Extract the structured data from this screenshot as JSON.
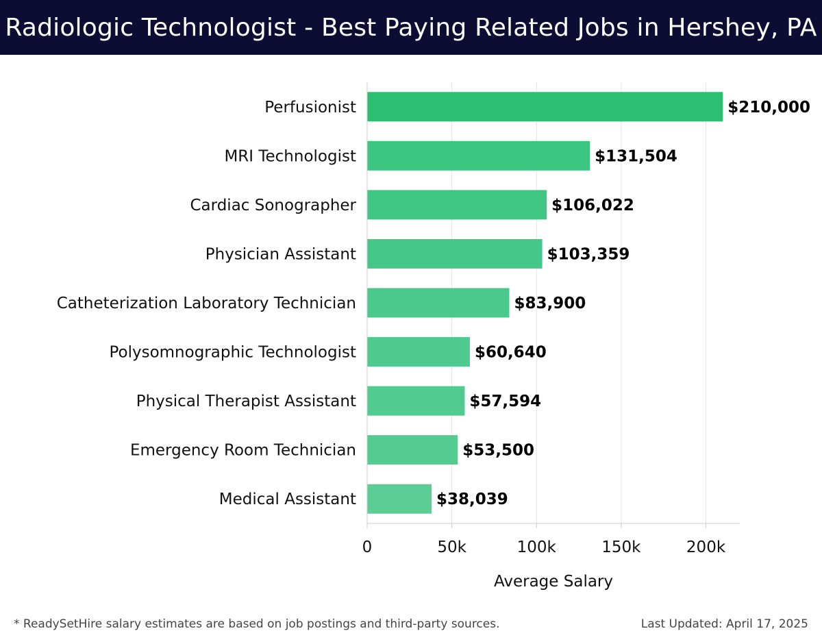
{
  "header": {
    "title": "Radiologic Technologist - Best Paying Related Jobs in Hershey, PA"
  },
  "chart_data": {
    "type": "bar",
    "orientation": "horizontal",
    "title": "Radiologic Technologist - Best Paying Related Jobs in Hershey, PA",
    "xlabel": "Average Salary",
    "ylabel": "",
    "xlim": [
      0,
      220000
    ],
    "grid": true,
    "categories": [
      "Perfusionist",
      "MRI Technologist",
      "Cardiac Sonographer",
      "Physician Assistant",
      "Catheterization Laboratory Technician",
      "Polysomnographic Technologist",
      "Physical Therapist Assistant",
      "Emergency Room Technician",
      "Medical Assistant"
    ],
    "values": [
      210000,
      131504,
      106022,
      103359,
      83900,
      60640,
      57594,
      53500,
      38039
    ],
    "value_labels": [
      "$210,000",
      "$131,504",
      "$106,022",
      "$103,359",
      "$83,900",
      "$60,640",
      "$57,594",
      "$53,500",
      "$38,039"
    ],
    "xticks": [
      0,
      50000,
      100000,
      150000,
      200000
    ],
    "xtick_labels": [
      "0",
      "50k",
      "100k",
      "150k",
      "200k"
    ],
    "bar_color": "#2bbf74",
    "bar_colors": [
      "#2bbf74",
      "#3dc682",
      "#3fc683",
      "#45c887",
      "#4ac98a",
      "#4fca8e",
      "#52cb90",
      "#54cc91",
      "#5bce96"
    ]
  },
  "footer": {
    "note": "* ReadySetHire salary estimates are based on job postings and third-party sources.",
    "updated": "Last Updated: April 17, 2025"
  }
}
